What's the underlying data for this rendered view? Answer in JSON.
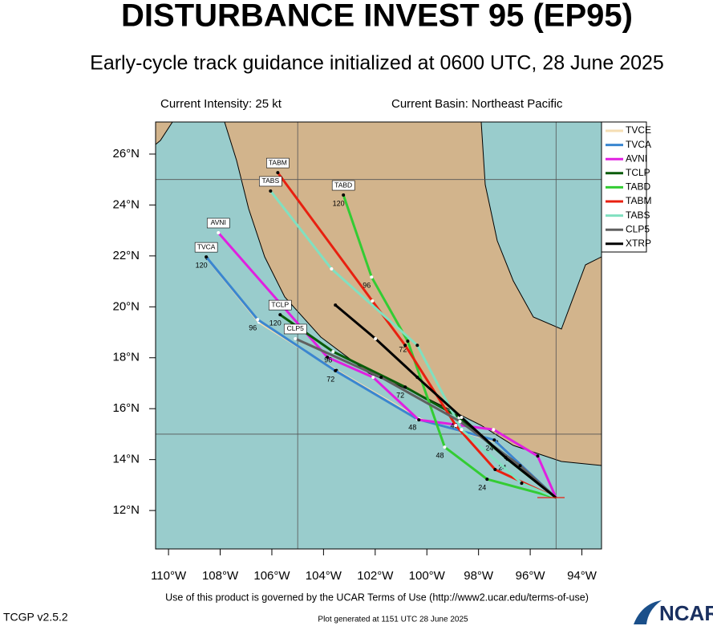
{
  "title": "DISTURBANCE INVEST 95 (EP95)",
  "subtitle": "Early-cycle track guidance initialized at 0600 UTC, 28 June 2025",
  "current_intensity": "Current Intensity: 25 kt",
  "current_basin": "Current Basin: Northeast Pacific",
  "map": {
    "xlim": [
      -110.5,
      -93.24
    ],
    "ylim": [
      10.49,
      27.26
    ],
    "xticks": [
      {
        "value": -110,
        "label": "110°W"
      },
      {
        "value": -108,
        "label": "108°W"
      },
      {
        "value": -106,
        "label": "106°W"
      },
      {
        "value": -104,
        "label": "104°W"
      },
      {
        "value": -102,
        "label": "102°W"
      },
      {
        "value": -100,
        "label": "100°W"
      },
      {
        "value": -98,
        "label": "98°W"
      },
      {
        "value": -96,
        "label": "96°W"
      },
      {
        "value": -94,
        "label": "94°W"
      }
    ],
    "yticks": [
      {
        "value": 12,
        "label": "12°N"
      },
      {
        "value": 14,
        "label": "14°N"
      },
      {
        "value": 16,
        "label": "16°N"
      },
      {
        "value": 18,
        "label": "18°N"
      },
      {
        "value": 20,
        "label": "20°N"
      },
      {
        "value": 22,
        "label": "22°N"
      },
      {
        "value": 24,
        "label": "24°N"
      },
      {
        "value": 26,
        "label": "26°N"
      }
    ],
    "grid_lon": [
      -105,
      -95
    ],
    "grid_lat": [
      15,
      25
    ],
    "hour_labels": [
      "24",
      "48",
      "72",
      "96",
      "120"
    ],
    "tracks": [
      {
        "name": "TVCE",
        "color": "#f5deb3",
        "labeled": false,
        "boxed": false,
        "points": [
          [
            -95,
            12.5
          ],
          [
            -97.3,
            14.7
          ],
          [
            -100.3,
            15.6
          ],
          [
            -103.5,
            17.5
          ],
          [
            -106.5,
            19.4
          ],
          [
            -108.5,
            21.9
          ]
        ]
      },
      {
        "name": "TVCA",
        "color": "#3a86d0",
        "labeled": true,
        "boxed": true,
        "points": [
          [
            -95,
            12.5
          ],
          [
            -97.39,
            14.77
          ],
          [
            -100.37,
            15.59
          ],
          [
            -103.54,
            17.49
          ],
          [
            -106.55,
            19.5
          ],
          [
            -108.54,
            21.96
          ]
        ]
      },
      {
        "name": "AVNI",
        "color": "#e020e0",
        "labeled": false,
        "boxed": true,
        "points": [
          [
            -95,
            12.5
          ],
          [
            -95.71,
            14.14
          ],
          [
            -97.42,
            15.18
          ],
          [
            -100.31,
            15.56
          ],
          [
            -102.08,
            17.23
          ],
          [
            -103.85,
            18.02
          ],
          [
            -108.07,
            22.91
          ]
        ]
      },
      {
        "name": "TCLP",
        "color": "#0a5c0a",
        "labeled": true,
        "boxed": true,
        "points": [
          [
            -95,
            12.5
          ],
          [
            -96.89,
            14.02
          ],
          [
            -98.75,
            15.66
          ],
          [
            -100.84,
            16.85
          ],
          [
            -103.63,
            18.24
          ],
          [
            -105.68,
            19.69
          ]
        ]
      },
      {
        "name": "TABD",
        "color": "#33cc33",
        "labeled": true,
        "boxed": true,
        "points": [
          [
            -95,
            12.5
          ],
          [
            -97.67,
            13.23
          ],
          [
            -99.31,
            14.49
          ],
          [
            -100.74,
            18.65
          ],
          [
            -102.14,
            21.17
          ],
          [
            -103.23,
            24.39
          ]
        ]
      },
      {
        "name": "TABM",
        "color": "#e82010",
        "labeled": false,
        "boxed": true,
        "points": [
          [
            -95,
            12.5
          ],
          [
            -97.36,
            13.61
          ],
          [
            -98.88,
            15.34
          ],
          [
            -100.84,
            18.49
          ],
          [
            -102.11,
            20.23
          ],
          [
            -105.77,
            25.27
          ]
        ]
      },
      {
        "name": "TABS",
        "color": "#80e0c0",
        "labeled": false,
        "boxed": true,
        "points": [
          [
            -95,
            12.5
          ],
          [
            -96.33,
            13.07
          ],
          [
            -98.66,
            15.18
          ],
          [
            -100.37,
            18.49
          ],
          [
            -103.69,
            21.49
          ],
          [
            -106.05,
            24.55
          ]
        ]
      },
      {
        "name": "CLP5",
        "color": "#606060",
        "labeled": false,
        "boxed": true,
        "points": [
          [
            -95,
            12.5
          ],
          [
            -96.39,
            13.76
          ],
          [
            -98.72,
            15.5
          ],
          [
            -101.77,
            17.23
          ],
          [
            -105.09,
            18.75
          ]
        ]
      },
      {
        "name": "XTRP",
        "color": "#000000",
        "labeled": false,
        "boxed": false,
        "points": [
          [
            -95,
            12.5
          ],
          [
            -96.95,
            14.08
          ],
          [
            -98.66,
            15.66
          ],
          [
            -100.37,
            17.23
          ],
          [
            -101.99,
            18.75
          ],
          [
            -103.54,
            20.07
          ]
        ]
      }
    ]
  },
  "terms": "Use of this product is governed by the UCAR Terms of Use (http://www2.ucar.edu/terms-of-use)",
  "version": "TCGP v2.5.2",
  "generated": "Plot generated at 1151 UTC   28 June 2025",
  "logo": "NCAR"
}
